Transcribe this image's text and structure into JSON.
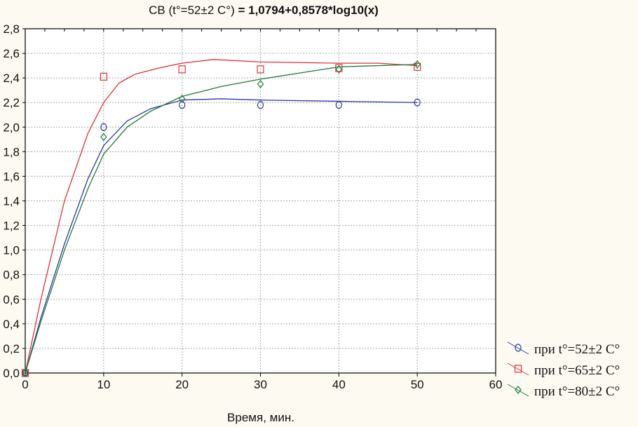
{
  "chart_data": {
    "type": "scatter",
    "title_prefix": "СВ (t°=52±2 C°)",
    "title_equation": " = 1,0794+0,8578*log10(x)",
    "xlabel": "Время, мин.",
    "ylabel": "",
    "xlim": [
      0,
      60
    ],
    "ylim": [
      0,
      2.8
    ],
    "xticks": [
      "0",
      "10",
      "20",
      "30",
      "40",
      "50",
      "60"
    ],
    "yticks": [
      "0,0",
      "0,2",
      "0,4",
      "0,6",
      "0,8",
      "1,0",
      "1,2",
      "1,4",
      "1,6",
      "1,8",
      "2,0",
      "2,2",
      "2,4",
      "2,6",
      "2,8"
    ],
    "grid": true,
    "legend_position": "bottom-right",
    "series": [
      {
        "name": "при t°=52±2 C°",
        "color": "#2b3a9a",
        "marker": "circle",
        "x": [
          0,
          10,
          20,
          30,
          40,
          50
        ],
        "y": [
          0,
          2.0,
          2.18,
          2.18,
          2.18,
          2.2
        ],
        "fit_x": [
          0,
          2,
          5,
          8,
          10,
          13,
          16,
          20,
          25,
          30,
          40,
          50
        ],
        "fit_y": [
          0,
          0.45,
          1.05,
          1.58,
          1.85,
          2.05,
          2.15,
          2.22,
          2.23,
          2.22,
          2.21,
          2.2
        ]
      },
      {
        "name": "при t°=65±2 C°",
        "color": "#e0303a",
        "marker": "square",
        "x": [
          0,
          10,
          20,
          30,
          40,
          50
        ],
        "y": [
          0,
          2.41,
          2.47,
          2.47,
          2.48,
          2.49
        ],
        "fit_x": [
          0,
          2,
          5,
          8,
          10,
          12,
          14,
          17,
          20,
          24,
          30,
          40,
          45,
          50
        ],
        "fit_y": [
          0,
          0.6,
          1.4,
          1.95,
          2.2,
          2.36,
          2.43,
          2.48,
          2.52,
          2.55,
          2.53,
          2.52,
          2.52,
          2.5
        ]
      },
      {
        "name": "при t°=80±2 C°",
        "color": "#1f7a3a",
        "marker": "diamond",
        "x": [
          0,
          10,
          20,
          30,
          40,
          50
        ],
        "y": [
          0,
          1.92,
          2.23,
          2.35,
          2.47,
          2.51
        ],
        "fit_x": [
          0,
          2,
          5,
          8,
          10,
          13,
          16,
          20,
          25,
          30,
          40,
          50
        ],
        "fit_y": [
          0,
          0.42,
          1.0,
          1.5,
          1.78,
          2.0,
          2.13,
          2.25,
          2.33,
          2.39,
          2.49,
          2.51
        ]
      }
    ]
  }
}
